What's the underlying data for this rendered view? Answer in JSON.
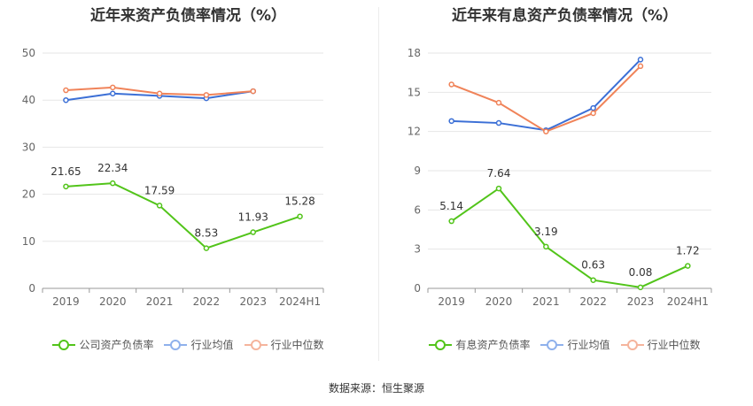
{
  "chart_data": [
    {
      "type": "line",
      "title": "近年来资产负债率情况（%）",
      "categories": [
        "2019",
        "2020",
        "2021",
        "2022",
        "2023",
        "2024H1"
      ],
      "ylim": [
        0,
        50
      ],
      "yticks": [
        "0",
        "10",
        "20",
        "30",
        "40",
        "50"
      ],
      "grid": true,
      "legend": "bottom",
      "series": [
        {
          "name": "公司资产负债率",
          "color": "#52c41a",
          "values": [
            21.65,
            22.34,
            17.59,
            8.53,
            11.93,
            15.28
          ],
          "labels": [
            "21.65",
            "22.34",
            "17.59",
            "8.53",
            "11.93",
            "15.28"
          ]
        },
        {
          "name": "行业均值",
          "color": "#3b6fd6",
          "legend_color": "#8fb1ec",
          "values": [
            40.0,
            41.4,
            40.9,
            40.4,
            41.9,
            null
          ]
        },
        {
          "name": "行业中位数",
          "color": "#f08359",
          "legend_color": "#f5b49c",
          "values": [
            42.1,
            42.7,
            41.4,
            41.1,
            41.9,
            null
          ]
        }
      ]
    },
    {
      "type": "line",
      "title": "近年来有息资产负债率情况（%）",
      "categories": [
        "2019",
        "2020",
        "2021",
        "2022",
        "2023",
        "2024H1"
      ],
      "ylim": [
        0,
        18
      ],
      "yticks": [
        "0",
        "3",
        "6",
        "9",
        "12",
        "15",
        "18"
      ],
      "grid": true,
      "legend": "bottom",
      "series": [
        {
          "name": "有息资产负债率",
          "color": "#52c41a",
          "values": [
            5.14,
            7.64,
            3.19,
            0.63,
            0.08,
            1.72
          ],
          "labels": [
            "5.14",
            "7.64",
            "3.19",
            "0.63",
            "0.08",
            "1.72"
          ]
        },
        {
          "name": "行业均值",
          "color": "#3b6fd6",
          "legend_color": "#8fb1ec",
          "values": [
            12.8,
            12.65,
            12.1,
            13.8,
            17.5,
            null
          ]
        },
        {
          "name": "行业中位数",
          "color": "#f08359",
          "legend_color": "#f5b49c",
          "values": [
            15.6,
            14.2,
            12.0,
            13.4,
            17.0,
            null
          ]
        }
      ]
    }
  ],
  "source": "数据来源：恒生聚源"
}
